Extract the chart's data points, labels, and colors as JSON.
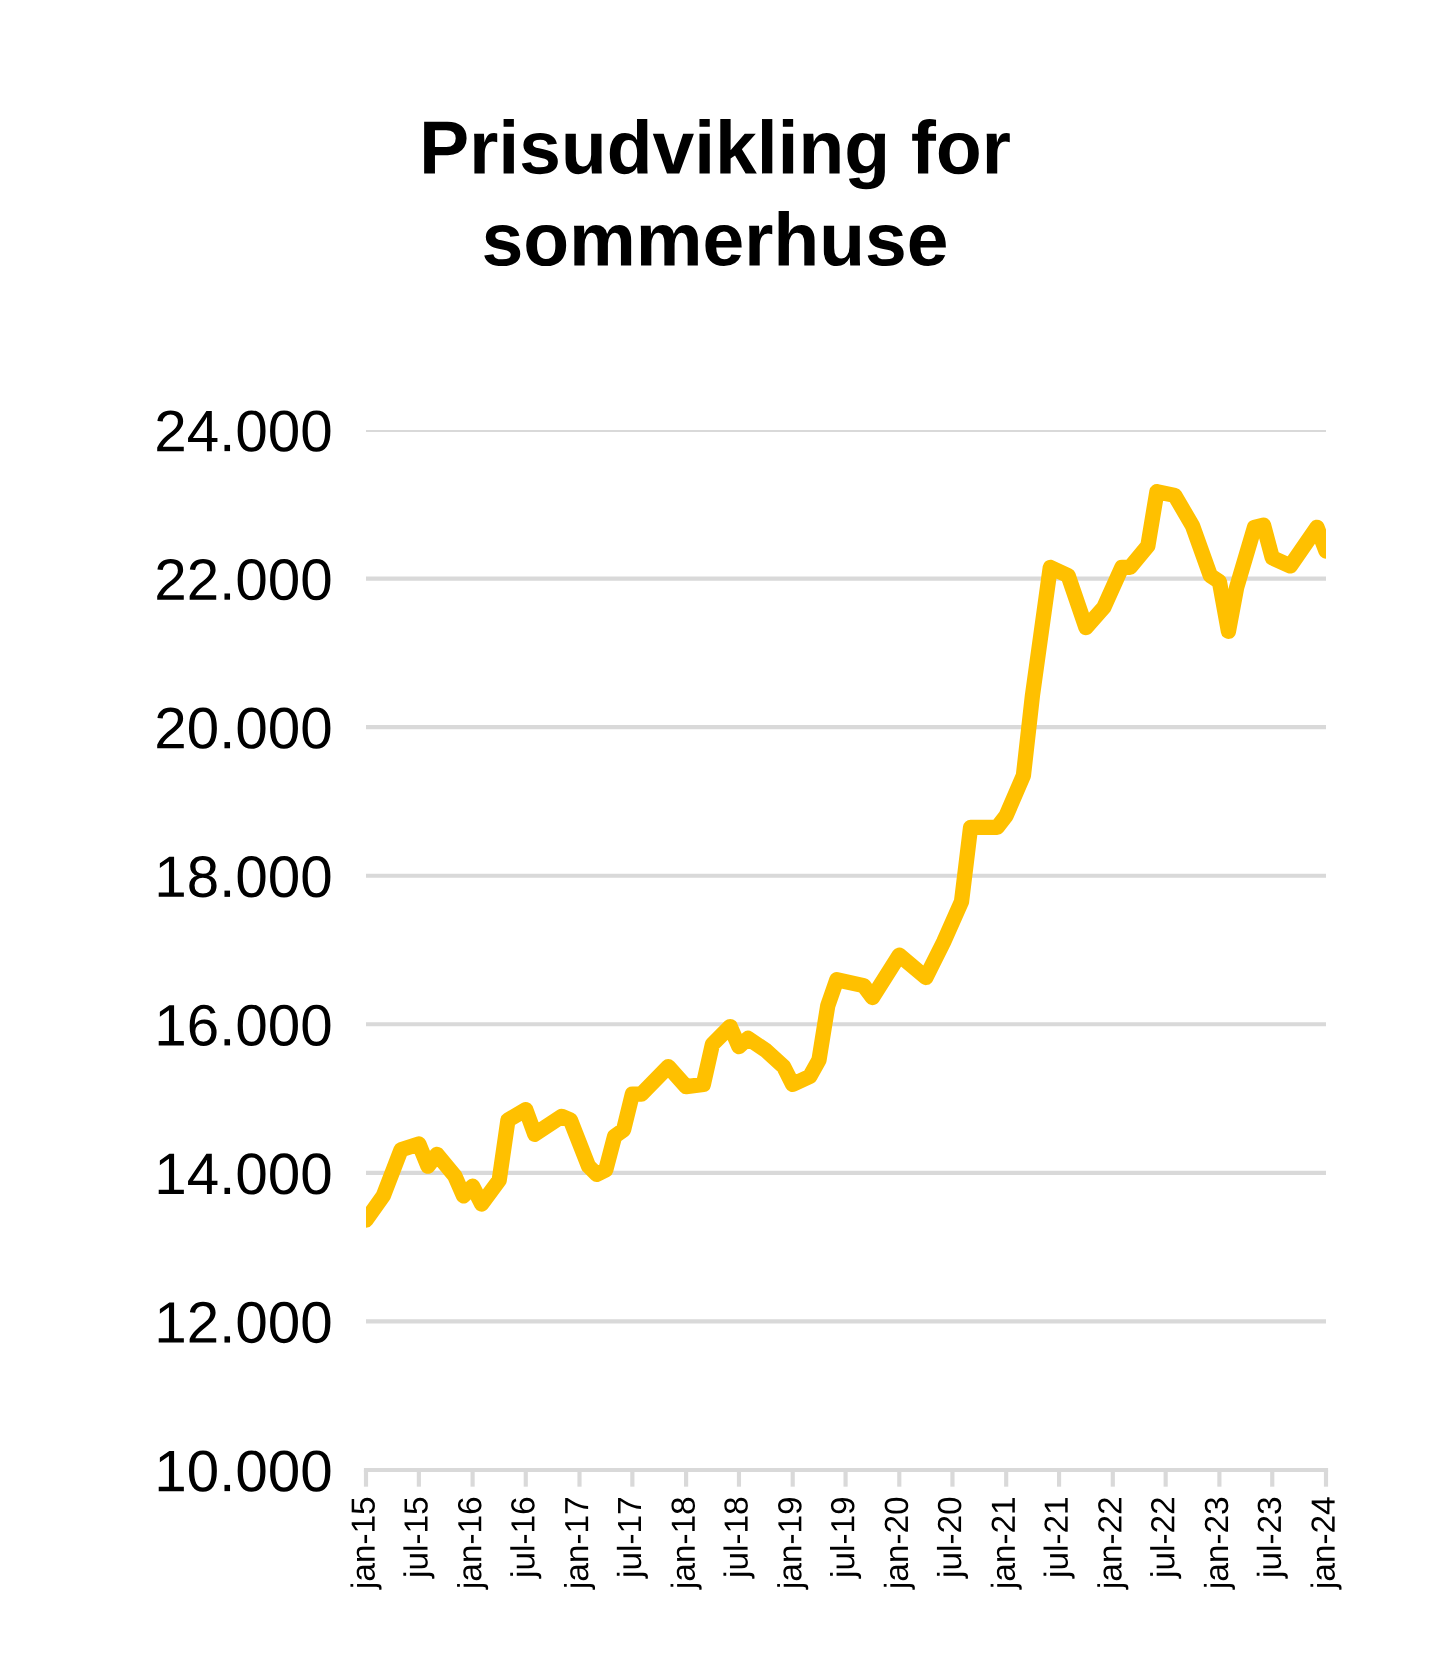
{
  "chart_data": {
    "type": "line",
    "title": "Prisudvikling for\nsommerhuse",
    "x": [
      "2015-01",
      "2015-03",
      "2015-05",
      "2015-07",
      "2015-08",
      "2015-09",
      "2015-11",
      "2015-12",
      "2016-01",
      "2016-02",
      "2016-04",
      "2016-05",
      "2016-07",
      "2016-08",
      "2016-11",
      "2016-12",
      "2017-02",
      "2017-03",
      "2017-04",
      "2017-05",
      "2017-06",
      "2017-07",
      "2017-08",
      "2017-11",
      "2018-01",
      "2018-03",
      "2018-04",
      "2018-06",
      "2018-07",
      "2018-08",
      "2018-10",
      "2018-12",
      "2019-01",
      "2019-03",
      "2019-04",
      "2019-05",
      "2019-06",
      "2019-09",
      "2019-10",
      "2020-01",
      "2020-04",
      "2020-06",
      "2020-08",
      "2020-09",
      "2020-12",
      "2021-01",
      "2021-03",
      "2021-04",
      "2021-06",
      "2021-08",
      "2021-10",
      "2021-12",
      "2022-02",
      "2022-03",
      "2022-05",
      "2022-06",
      "2022-08",
      "2022-10",
      "2022-12",
      "2023-01",
      "2023-02",
      "2023-03",
      "2023-05",
      "2023-06",
      "2023-07",
      "2023-09",
      "2023-12",
      "2024-01"
    ],
    "series": [
      {
        "color": "#ffc000",
        "values": [
          13365,
          13690,
          14310,
          14390,
          14090,
          14250,
          13960,
          13690,
          13820,
          13580,
          13900,
          14710,
          14850,
          14520,
          14760,
          14710,
          14090,
          13980,
          14040,
          14490,
          14580,
          15060,
          15060,
          15430,
          15160,
          15190,
          15730,
          15970,
          15700,
          15810,
          15650,
          15430,
          15190,
          15300,
          15520,
          16250,
          16600,
          16520,
          16360,
          16930,
          16630,
          17110,
          17650,
          18650,
          18650,
          18810,
          19350,
          20430,
          22150,
          22040,
          21340,
          21610,
          22150,
          22150,
          22440,
          23170,
          23120,
          22710,
          22040,
          21960,
          21290,
          21880,
          22690,
          22720,
          22280,
          22170,
          22690,
          22370
        ]
      }
    ],
    "xlim": [
      "2015-01",
      "2024-01"
    ],
    "xticks": [
      {
        "value": "2015-01",
        "label": "jan-15"
      },
      {
        "value": "2015-07",
        "label": "jul-15"
      },
      {
        "value": "2016-01",
        "label": "jan-16"
      },
      {
        "value": "2016-07",
        "label": "jul-16"
      },
      {
        "value": "2017-01",
        "label": "jan-17"
      },
      {
        "value": "2017-07",
        "label": "jul-17"
      },
      {
        "value": "2018-01",
        "label": "jan-18"
      },
      {
        "value": "2018-07",
        "label": "jul-18"
      },
      {
        "value": "2019-01",
        "label": "jan-19"
      },
      {
        "value": "2019-07",
        "label": "jul-19"
      },
      {
        "value": "2020-01",
        "label": "jan-20"
      },
      {
        "value": "2020-07",
        "label": "jul-20"
      },
      {
        "value": "2021-01",
        "label": "jan-21"
      },
      {
        "value": "2021-07",
        "label": "jul-21"
      },
      {
        "value": "2022-01",
        "label": "jan-22"
      },
      {
        "value": "2022-07",
        "label": "jul-22"
      },
      {
        "value": "2023-01",
        "label": "jan-23"
      },
      {
        "value": "2023-07",
        "label": "jul-23"
      },
      {
        "value": "2024-01",
        "label": "jan-24"
      }
    ],
    "ylim": [
      10000,
      24000
    ],
    "yticks": [
      {
        "value": 10000,
        "label": "10.000"
      },
      {
        "value": 12000,
        "label": "12.000"
      },
      {
        "value": 14000,
        "label": "14.000"
      },
      {
        "value": 16000,
        "label": "16.000"
      },
      {
        "value": 18000,
        "label": "18.000"
      },
      {
        "value": 20000,
        "label": "20.000"
      },
      {
        "value": 22000,
        "label": "22.000"
      },
      {
        "value": 24000,
        "label": "24.000"
      }
    ],
    "grid": "y",
    "legend": false,
    "marker": "none",
    "line_style": "solid"
  }
}
